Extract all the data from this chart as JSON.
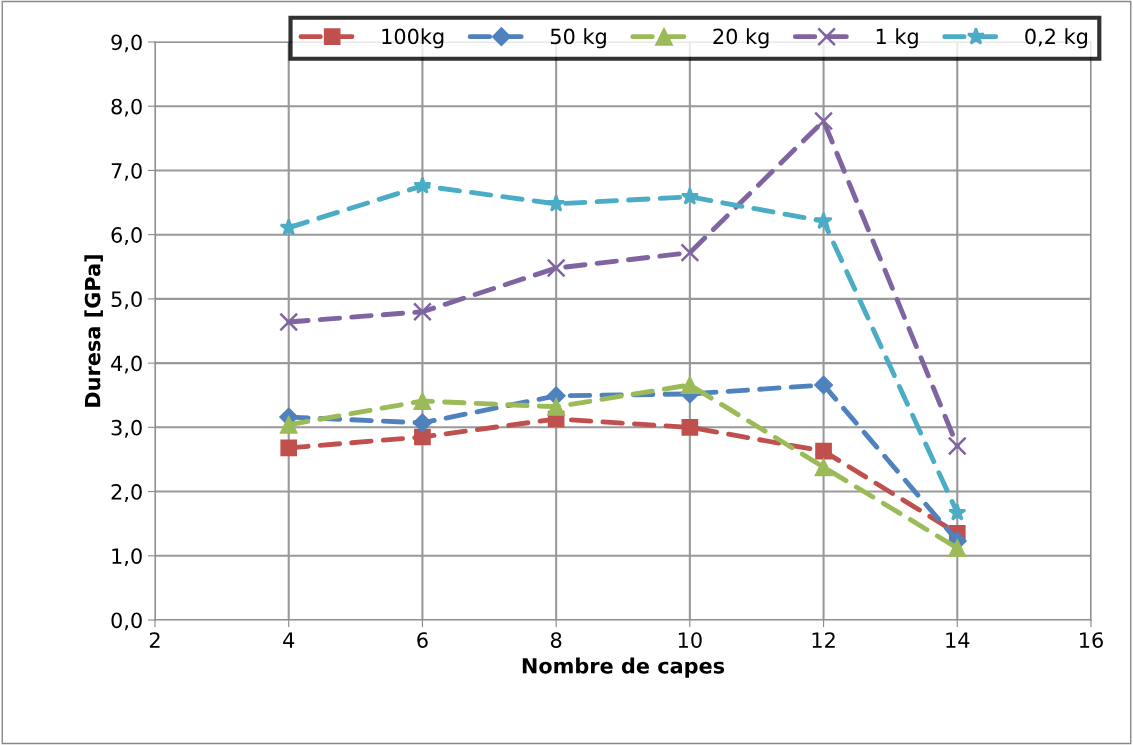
{
  "chart_data": {
    "type": "line",
    "xlabel": "Nombre de capes",
    "ylabel": "Duresa [GPa]",
    "x": [
      4,
      6,
      8,
      10,
      12,
      14
    ],
    "series": [
      {
        "name": "100kg",
        "color": "#c0504d",
        "marker": "square",
        "values": [
          2.68,
          2.85,
          3.13,
          3.0,
          2.63,
          1.35
        ]
      },
      {
        "name": "50 kg",
        "color": "#4f81bd",
        "marker": "diamond",
        "values": [
          3.16,
          3.07,
          3.49,
          3.52,
          3.66,
          1.23
        ]
      },
      {
        "name": "20 kg",
        "color": "#9bbb59",
        "marker": "triangle",
        "values": [
          3.04,
          3.41,
          3.32,
          3.66,
          2.38,
          1.12
        ]
      },
      {
        "name": "1 kg",
        "color": "#8064a2",
        "marker": "cross",
        "values": [
          4.64,
          4.8,
          5.48,
          5.72,
          7.77,
          2.71
        ]
      },
      {
        "name": "0,2 kg",
        "color": "#4bacc6",
        "marker": "star",
        "values": [
          6.11,
          6.76,
          6.48,
          6.59,
          6.21,
          1.67
        ]
      }
    ],
    "line_style": "dashed",
    "grid": true,
    "legend": "top right",
    "xlim": [
      2,
      16
    ],
    "xticks": [
      2,
      4,
      6,
      8,
      10,
      12,
      14,
      16
    ],
    "ylim": [
      0,
      9
    ],
    "yticks": [
      {
        "value": 0,
        "label": "0,0"
      },
      {
        "value": 1,
        "label": "1,0"
      },
      {
        "value": 2,
        "label": "2,0"
      },
      {
        "value": 3,
        "label": "3,0"
      },
      {
        "value": 4,
        "label": "4,0"
      },
      {
        "value": 5,
        "label": "5,0"
      },
      {
        "value": 6,
        "label": "6,0"
      },
      {
        "value": 7,
        "label": "7,0"
      },
      {
        "value": 8,
        "label": "8,0"
      },
      {
        "value": 9,
        "label": "9,0"
      }
    ]
  }
}
